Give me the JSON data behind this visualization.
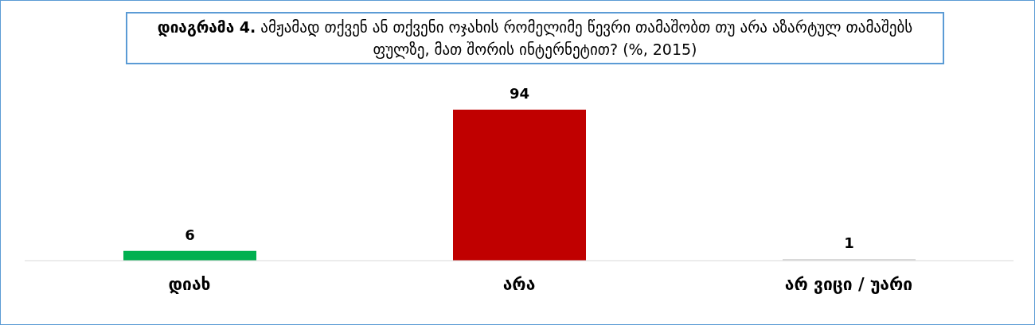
{
  "chart_data": {
    "type": "bar",
    "title": "დიაგრამა 4. ამჟამად თქვენ ან თქვენი ოჯახის რომელიმე წევრი თამაშობთ თუ არა აზარტულ თამაშებს ფულზე, მათ შორის ინტერნეტით? (%, 2015)",
    "categories": [
      "დიახ",
      "არა",
      "არ ვიცი / უარი"
    ],
    "values": [
      6,
      94,
      1
    ],
    "colors": [
      "#00b050",
      "#c00000",
      "#d9d9d9"
    ],
    "data_labels": true,
    "relative": false,
    "grid": false,
    "legend": false
  }
}
